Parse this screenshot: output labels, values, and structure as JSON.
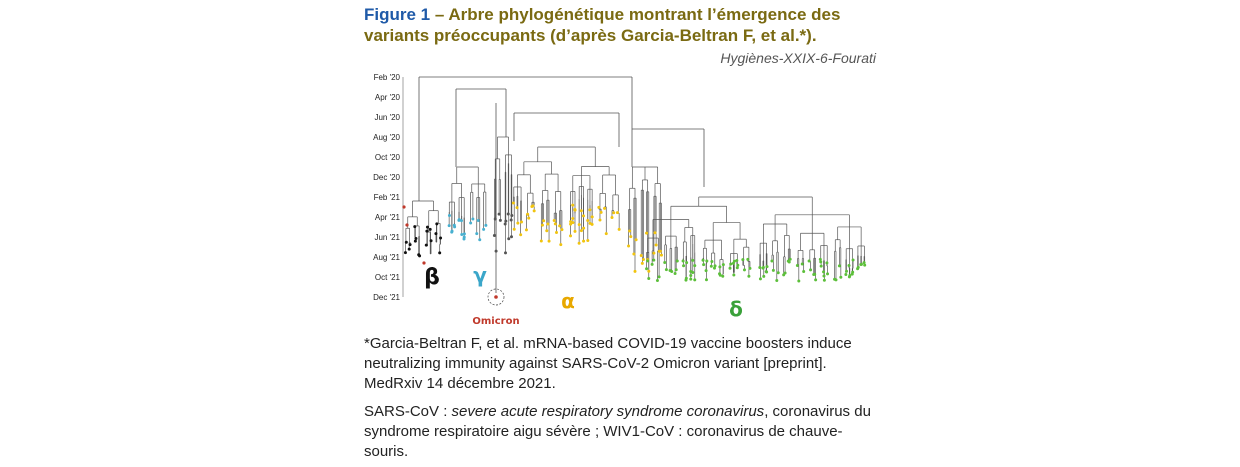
{
  "caption": {
    "label": "Figure 1",
    "dash": " – ",
    "title": "Arbre phylogénétique montrant l’émergence des variants préoccupants (d’après Garcia-Beltran F, et al.*).",
    "credit": "Hygiènes-XXIX-6-Fourati"
  },
  "chart_data": {
    "type": "phylogenetic-tree",
    "y_axis_labels": [
      "Feb '20",
      "Apr '20",
      "Jun '20",
      "Aug '20",
      "Oct '20",
      "Dec '20",
      "Feb '21",
      "Apr '21",
      "Jun '21",
      "Aug '21",
      "Oct '21",
      "Dec '21"
    ],
    "clade_labels": [
      {
        "label": "β",
        "color": "#111111"
      },
      {
        "label": "γ",
        "color": "#3aa6c9"
      },
      {
        "label": "Omicron",
        "color": "#c0392b"
      },
      {
        "label": "α",
        "color": "#e8a800"
      },
      {
        "label": "δ",
        "color": "#3aa13a"
      }
    ],
    "colors": {
      "branch": "#555555",
      "beta": "#111111",
      "gamma": "#48b0d0",
      "omicron": "#c0392b",
      "alpha": "#f1c40f",
      "delta": "#5cbf3a"
    }
  },
  "footnote": {
    "ref": "*Garcia-Beltran F, et al. mRNA-based COVID-19 vaccine boosters induce neutralizing immunity against SARS-CoV-2 Omicron variant [preprint]. MedRxiv 14 décembre 2021.",
    "sars_term": "SARS-CoV",
    "sars_sep": " : ",
    "sars_def": "severe acute respiratory syndrome coronavirus",
    "sars_rest": ", coronavirus du syndrome respiratoire aigu sévère ; WIV1-CoV : coronavirus de chauve-souris."
  }
}
